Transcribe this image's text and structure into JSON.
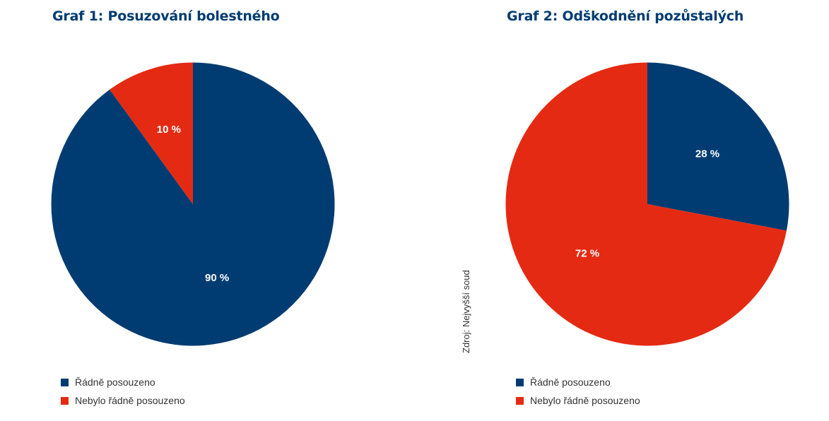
{
  "colors": {
    "navy": "#003c71",
    "red": "#e52a13",
    "label": "#ffffff"
  },
  "source": "Zdroj: Nejvyšší soud",
  "chart_data": [
    {
      "type": "pie",
      "title": "Graf 1: Posuzování bolestného",
      "slices": [
        {
          "name": "Řádně posouzeno",
          "value": 90,
          "label": "90 %",
          "color": "#003c71"
        },
        {
          "name": "Nebylo řádně posouzeno",
          "value": 10,
          "label": "10 %",
          "color": "#e52a13"
        }
      ],
      "legend": [
        "Řádně posouzeno",
        "Nebylo řádně posouzeno"
      ],
      "legend_position": "bottom-left"
    },
    {
      "type": "pie",
      "title": "Graf 2: Odškodnění pozůstalých",
      "slices": [
        {
          "name": "Řádně posouzeno",
          "value": 28,
          "label": "28 %",
          "color": "#003c71"
        },
        {
          "name": "Nebylo řádně posouzeno",
          "value": 72,
          "label": "72 %",
          "color": "#e52a13"
        }
      ],
      "legend": [
        "Řádně posouzeno",
        "Nebylo řádně posouzeno"
      ],
      "legend_position": "bottom-left"
    }
  ]
}
